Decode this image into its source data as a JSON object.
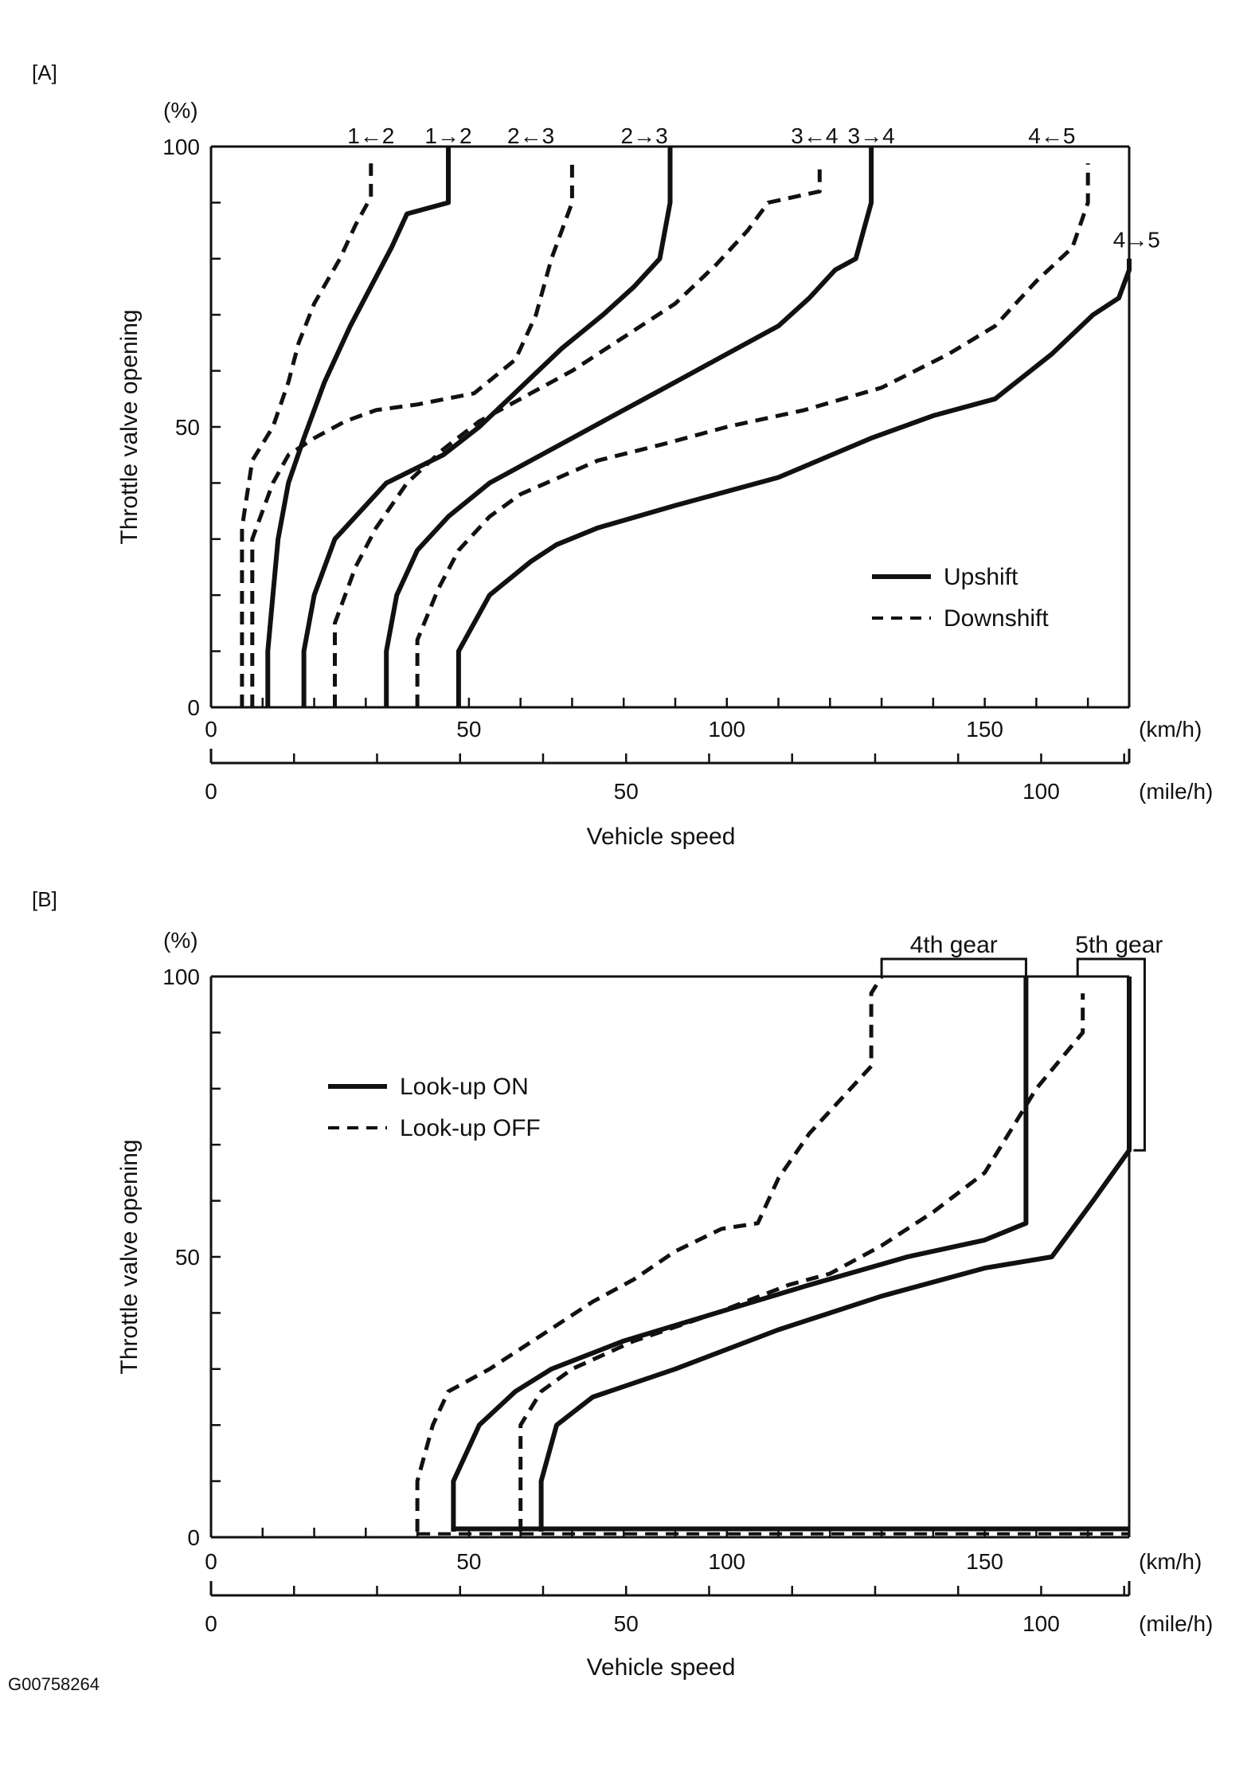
{
  "doc_code": "G00758264",
  "chart_data": [
    {
      "panel_label": "[A]",
      "type": "line",
      "ylabel": "Throttle valve opening",
      "yunit": "(%)",
      "xlabel": "Vehicle speed",
      "xunit_primary": "(km/h)",
      "xunit_secondary": "(mile/h)",
      "xlim": [
        0,
        178
      ],
      "ylim": [
        0,
        100
      ],
      "x_ticks_labeled": [
        "0",
        "50",
        "100",
        "150"
      ],
      "x2_ticks_labeled": [
        "0",
        "50",
        "100"
      ],
      "y_ticks_labeled": [
        "0",
        "50",
        "100"
      ],
      "legend": {
        "position": "lower-right",
        "items": [
          {
            "label": "Upshift",
            "style": "solid"
          },
          {
            "label": "Downshift",
            "style": "dashed"
          }
        ]
      },
      "series": [
        {
          "name": "1←2",
          "style": "dashed",
          "points": [
            [
              6,
              0
            ],
            [
              6,
              32
            ],
            [
              8,
              44
            ],
            [
              12,
              50
            ],
            [
              15,
              58
            ],
            [
              17,
              65
            ],
            [
              20,
              72
            ],
            [
              25,
              80
            ],
            [
              28,
              86
            ],
            [
              31,
              91
            ],
            [
              31,
              97
            ]
          ]
        },
        {
          "name": "1→2",
          "style": "solid",
          "points": [
            [
              11,
              0
            ],
            [
              11,
              10
            ],
            [
              12,
              20
            ],
            [
              13,
              30
            ],
            [
              15,
              40
            ],
            [
              18,
              48
            ],
            [
              22,
              58
            ],
            [
              27,
              68
            ],
            [
              31,
              75
            ],
            [
              35,
              82
            ],
            [
              38,
              88
            ],
            [
              46,
              90
            ],
            [
              46,
              100
            ]
          ]
        },
        {
          "name": "2←3",
          "style": "dashed",
          "points": [
            [
              8,
              0
            ],
            [
              8,
              30
            ],
            [
              12,
              40
            ],
            [
              15,
              45
            ],
            [
              20,
              48
            ],
            [
              26,
              51
            ],
            [
              32,
              53
            ],
            [
              40,
              54
            ],
            [
              51,
              56
            ],
            [
              59,
              62
            ],
            [
              63,
              70
            ],
            [
              66,
              80
            ],
            [
              70,
              90
            ],
            [
              70,
              97
            ]
          ]
        },
        {
          "name": "2→3",
          "style": "solid",
          "points": [
            [
              18,
              0
            ],
            [
              18,
              10
            ],
            [
              20,
              20
            ],
            [
              24,
              30
            ],
            [
              34,
              40
            ],
            [
              45,
              45
            ],
            [
              52,
              50
            ],
            [
              60,
              57
            ],
            [
              68,
              64
            ],
            [
              76,
              70
            ],
            [
              82,
              75
            ],
            [
              87,
              80
            ],
            [
              89,
              90
            ],
            [
              89,
              100
            ]
          ]
        },
        {
          "name": "3←4",
          "style": "dashed",
          "points": [
            [
              24,
              0
            ],
            [
              24,
              15
            ],
            [
              28,
              25
            ],
            [
              32,
              32
            ],
            [
              38,
              40
            ],
            [
              45,
              46
            ],
            [
              52,
              51
            ],
            [
              60,
              55
            ],
            [
              70,
              60
            ],
            [
              80,
              66
            ],
            [
              90,
              72
            ],
            [
              98,
              79
            ],
            [
              104,
              85
            ],
            [
              108,
              90
            ],
            [
              118,
              92
            ],
            [
              118,
              97
            ]
          ]
        },
        {
          "name": "3→4",
          "style": "solid",
          "points": [
            [
              34,
              0
            ],
            [
              34,
              10
            ],
            [
              36,
              20
            ],
            [
              40,
              28
            ],
            [
              46,
              34
            ],
            [
              54,
              40
            ],
            [
              62,
              44
            ],
            [
              70,
              48
            ],
            [
              78,
              52
            ],
            [
              86,
              56
            ],
            [
              94,
              60
            ],
            [
              102,
              64
            ],
            [
              110,
              68
            ],
            [
              116,
              73
            ],
            [
              121,
              78
            ],
            [
              125,
              80
            ],
            [
              128,
              90
            ],
            [
              128,
              100
            ]
          ]
        },
        {
          "name": "4←5",
          "style": "dashed",
          "points": [
            [
              40,
              0
            ],
            [
              40,
              12
            ],
            [
              44,
              21
            ],
            [
              48,
              28
            ],
            [
              54,
              34
            ],
            [
              60,
              38
            ],
            [
              65,
              40
            ],
            [
              75,
              44
            ],
            [
              88,
              47
            ],
            [
              100,
              50
            ],
            [
              115,
              53
            ],
            [
              130,
              57
            ],
            [
              143,
              63
            ],
            [
              152,
              68
            ],
            [
              160,
              76
            ],
            [
              167,
              82
            ],
            [
              170,
              90
            ],
            [
              170,
              97
            ]
          ]
        },
        {
          "name": "4→5",
          "style": "solid",
          "points": [
            [
              48,
              0
            ],
            [
              48,
              10
            ],
            [
              54,
              20
            ],
            [
              62,
              26
            ],
            [
              67,
              29
            ],
            [
              75,
              32
            ],
            [
              90,
              36
            ],
            [
              110,
              41
            ],
            [
              128,
              48
            ],
            [
              140,
              52
            ],
            [
              152,
              55
            ],
            [
              163,
              63
            ],
            [
              171,
              70
            ],
            [
              176,
              73
            ],
            [
              178,
              78
            ],
            [
              178,
              80
            ]
          ]
        }
      ],
      "shift_labels": [
        {
          "label": "1←2",
          "x": 31
        },
        {
          "label": "1→2",
          "x": 46
        },
        {
          "label": "2←3",
          "x": 62
        },
        {
          "label": "2→3",
          "x": 84
        },
        {
          "label": "3←4",
          "x": 117
        },
        {
          "label": "3→4",
          "x": 128
        },
        {
          "label": "4←5",
          "x": 163
        },
        {
          "label": "4→5",
          "x": 184,
          "y": 82
        }
      ]
    },
    {
      "panel_label": "[B]",
      "type": "line",
      "ylabel": "Throttle valve opening",
      "yunit": "(%)",
      "xlabel": "Vehicle speed",
      "xunit_primary": "(km/h)",
      "xunit_secondary": "(mile/h)",
      "xlim": [
        0,
        178
      ],
      "ylim": [
        0,
        100
      ],
      "x_ticks_labeled": [
        "0",
        "50",
        "100",
        "150"
      ],
      "x2_ticks_labeled": [
        "0",
        "50",
        "100"
      ],
      "y_ticks_labeled": [
        "0",
        "50",
        "100"
      ],
      "legend": {
        "position": "upper-left",
        "items": [
          {
            "label": "Look-up ON",
            "style": "solid"
          },
          {
            "label": "Look-up OFF",
            "style": "dashed"
          }
        ]
      },
      "gear_labels": [
        {
          "label": "4th gear",
          "x_start": 130,
          "x_end": 158
        },
        {
          "label": "5th gear",
          "x_start": 168,
          "x_end": 181
        }
      ],
      "series": [
        {
          "name": "4th gear Look-up OFF",
          "style": "dashed",
          "points": [
            [
              40,
              1
            ],
            [
              40,
              10
            ],
            [
              43,
              20
            ],
            [
              46,
              26
            ],
            [
              54,
              30
            ],
            [
              64,
              36
            ],
            [
              74,
              42
            ],
            [
              82,
              46
            ],
            [
              90,
              51
            ],
            [
              99,
              55
            ],
            [
              106,
              56
            ],
            [
              110,
              64
            ],
            [
              116,
              72
            ],
            [
              128,
              84
            ],
            [
              128,
              97
            ],
            [
              130,
              100
            ]
          ]
        },
        {
          "name": "4th gear Look-up ON",
          "style": "solid",
          "points": [
            [
              47,
              1
            ],
            [
              47,
              10
            ],
            [
              52,
              20
            ],
            [
              59,
              26
            ],
            [
              66,
              30
            ],
            [
              80,
              35
            ],
            [
              98,
              40
            ],
            [
              116,
              45
            ],
            [
              135,
              50
            ],
            [
              150,
              53
            ],
            [
              158,
              56
            ],
            [
              158,
              100
            ]
          ]
        },
        {
          "name": "5th gear Look-up OFF",
          "style": "dashed",
          "points": [
            [
              60,
              1
            ],
            [
              60,
              20
            ],
            [
              64,
              26
            ],
            [
              70,
              30
            ],
            [
              82,
              35
            ],
            [
              98,
              40
            ],
            [
              112,
              45
            ],
            [
              120,
              47
            ],
            [
              130,
              52
            ],
            [
              140,
              58
            ],
            [
              150,
              65
            ],
            [
              160,
              80
            ],
            [
              169,
              90
            ],
            [
              169,
              97
            ]
          ]
        },
        {
          "name": "5th gear Look-up ON",
          "style": "solid",
          "points": [
            [
              64,
              1
            ],
            [
              64,
              10
            ],
            [
              67,
              20
            ],
            [
              74,
              25
            ],
            [
              90,
              30
            ],
            [
              110,
              37
            ],
            [
              130,
              43
            ],
            [
              150,
              48
            ],
            [
              163,
              50
            ],
            [
              171,
              60
            ],
            [
              178,
              69
            ],
            [
              178,
              100
            ]
          ]
        }
      ]
    }
  ]
}
